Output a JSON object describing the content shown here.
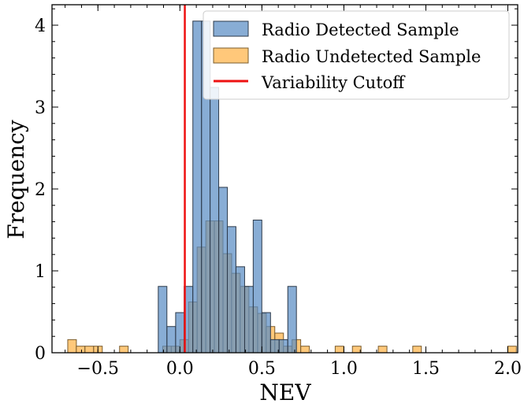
{
  "chart_data": {
    "type": "histogram",
    "title": "",
    "xlabel": "NEV",
    "ylabel": "Frequency",
    "xlim": [
      -0.78,
      2.06
    ],
    "ylim": [
      0,
      4.25
    ],
    "xticks": [
      -0.5,
      0.0,
      0.5,
      1.0,
      1.5,
      2.0
    ],
    "xtick_labels": [
      "−0.5",
      "0.0",
      "0.5",
      "1.0",
      "1.5",
      "2.0"
    ],
    "yticks": [
      0,
      1,
      2,
      3,
      4
    ],
    "ytick_labels": [
      "0",
      "1",
      "2",
      "3",
      "4"
    ],
    "bin_width": 0.0526,
    "legend_position": "top-right",
    "series": [
      {
        "name": "Radio Detected Sample",
        "color": "#5a8dc5",
        "edge": "#2d3a4a",
        "bins": [
          [
            -0.132,
            0.81
          ],
          [
            -0.079,
            0.32
          ],
          [
            -0.026,
            0.49
          ],
          [
            0.026,
            0.81
          ],
          [
            0.079,
            4.05
          ],
          [
            0.132,
            4.05
          ],
          [
            0.184,
            3.24
          ],
          [
            0.237,
            2.02
          ],
          [
            0.289,
            1.54
          ],
          [
            0.342,
            1.05
          ],
          [
            0.395,
            0.81
          ],
          [
            0.447,
            1.62
          ],
          [
            0.5,
            0.49
          ],
          [
            0.553,
            0.16
          ],
          [
            0.605,
            0.16
          ],
          [
            0.658,
            0.81
          ]
        ]
      },
      {
        "name": "Radio Undetected Sample",
        "color": "#ffb347",
        "edge": "#7a5c2e",
        "bins": [
          [
            -0.684,
            0.16
          ],
          [
            -0.632,
            0.08
          ],
          [
            -0.579,
            0.08
          ],
          [
            -0.526,
            0.08
          ],
          [
            -0.368,
            0.08
          ],
          [
            -0.105,
            0.08
          ],
          [
            -0.053,
            0.08
          ],
          [
            -0.0,
            0.16
          ],
          [
            0.053,
            0.62
          ],
          [
            0.105,
            1.29
          ],
          [
            0.158,
            1.61
          ],
          [
            0.21,
            1.61
          ],
          [
            0.263,
            1.21
          ],
          [
            0.315,
            0.97
          ],
          [
            0.368,
            0.81
          ],
          [
            0.421,
            0.56
          ],
          [
            0.474,
            0.48
          ],
          [
            0.526,
            0.32
          ],
          [
            0.579,
            0.24
          ],
          [
            0.631,
            0.08
          ],
          [
            0.684,
            0.16
          ],
          [
            0.737,
            0.08
          ],
          [
            0.947,
            0.08
          ],
          [
            1.052,
            0.08
          ],
          [
            1.21,
            0.08
          ],
          [
            1.42,
            0.08
          ],
          [
            1.999,
            0.08
          ]
        ]
      }
    ],
    "cutoff": {
      "name": "Variability Cutoff",
      "x": 0.03,
      "color": "#ee1111"
    }
  }
}
